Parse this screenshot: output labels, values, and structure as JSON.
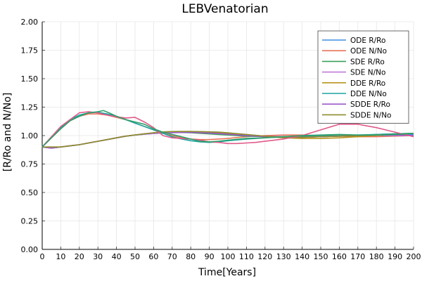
{
  "chart_data": {
    "type": "line",
    "title": "LEBVenatorian",
    "xlabel": "Time[Years]",
    "ylabel": "[R/Ro and N/No]",
    "xlim": [
      0,
      200
    ],
    "ylim": [
      0,
      2
    ],
    "xticks": [
      0,
      10,
      20,
      30,
      40,
      50,
      60,
      70,
      80,
      90,
      100,
      110,
      120,
      130,
      140,
      150,
      160,
      170,
      180,
      190,
      200
    ],
    "yticks": [
      "0.00",
      "0.25",
      "0.50",
      "0.75",
      "1.00",
      "1.25",
      "1.50",
      "1.75",
      "2.00"
    ],
    "grid": true,
    "legend_position": "top-right",
    "series": [
      {
        "name": "ODE R/Ro",
        "color": "#3b8fe0",
        "x": [
          0,
          5,
          10,
          15,
          20,
          25,
          30,
          35,
          40,
          45,
          50,
          55,
          60,
          65,
          70,
          75,
          80,
          85,
          90,
          95,
          100,
          110,
          120,
          130,
          140,
          150,
          160,
          170,
          180,
          190,
          200
        ],
        "y": [
          0.9,
          0.89,
          0.9,
          0.91,
          0.92,
          0.935,
          0.95,
          0.965,
          0.98,
          0.995,
          1.005,
          1.012,
          1.018,
          1.022,
          1.025,
          1.026,
          1.026,
          1.024,
          1.021,
          1.017,
          1.012,
          1.002,
          0.995,
          0.99,
          0.988,
          0.99,
          0.995,
          1.0,
          1.005,
          1.01,
          1.01
        ]
      },
      {
        "name": "ODE N/No",
        "color": "#e8745a",
        "x": [
          0,
          5,
          10,
          15,
          20,
          25,
          30,
          35,
          40,
          45,
          50,
          55,
          60,
          65,
          70,
          75,
          80,
          85,
          90,
          95,
          100,
          110,
          120,
          130,
          140,
          150,
          160,
          170,
          180,
          190,
          200
        ],
        "y": [
          0.9,
          0.98,
          1.06,
          1.13,
          1.17,
          1.19,
          1.19,
          1.18,
          1.16,
          1.14,
          1.11,
          1.08,
          1.05,
          1.02,
          1.0,
          0.98,
          0.97,
          0.965,
          0.965,
          0.97,
          0.975,
          0.99,
          1.0,
          1.005,
          1.005,
          1.0,
          0.995,
          0.99,
          0.99,
          0.995,
          1.0
        ]
      },
      {
        "name": "SDE R/Ro",
        "color": "#3aa05a",
        "x": [
          0,
          5,
          10,
          15,
          20,
          25,
          30,
          35,
          40,
          45,
          50,
          55,
          60,
          65,
          70,
          75,
          80,
          85,
          90,
          95,
          100,
          110,
          120,
          130,
          140,
          150,
          160,
          170,
          180,
          190,
          200
        ],
        "y": [
          0.9,
          0.89,
          0.9,
          0.91,
          0.92,
          0.935,
          0.95,
          0.965,
          0.98,
          0.995,
          1.005,
          1.015,
          1.02,
          1.025,
          1.027,
          1.028,
          1.025,
          1.02,
          1.015,
          1.01,
          1.005,
          0.995,
          0.99,
          0.985,
          0.985,
          0.99,
          0.995,
          1.0,
          1.01,
          1.015,
          1.02
        ]
      },
      {
        "name": "SDE N/No",
        "color": "#c07ad8",
        "x": [
          0,
          5,
          10,
          15,
          20,
          25,
          30,
          35,
          40,
          45,
          50,
          55,
          60,
          65,
          70,
          75,
          80,
          85,
          90,
          95,
          100,
          110,
          120,
          130,
          140,
          150,
          160,
          170,
          180,
          190,
          200
        ],
        "y": [
          0.9,
          0.89,
          0.9,
          0.91,
          0.92,
          0.935,
          0.95,
          0.965,
          0.98,
          0.995,
          1.005,
          1.012,
          1.018,
          1.022,
          1.025,
          1.027,
          1.028,
          1.026,
          1.022,
          1.018,
          1.013,
          1.003,
          0.995,
          0.99,
          0.988,
          0.99,
          0.995,
          1.0,
          1.0,
          1.0,
          1.0
        ]
      },
      {
        "name": "DDE R/Ro",
        "color": "#b8931a",
        "x": [
          0,
          5,
          10,
          15,
          20,
          25,
          30,
          35,
          40,
          45,
          50,
          55,
          60,
          65,
          70,
          75,
          80,
          85,
          90,
          95,
          100,
          110,
          120,
          130,
          140,
          150,
          160,
          170,
          180,
          190,
          200
        ],
        "y": [
          0.9,
          0.89,
          0.9,
          0.91,
          0.92,
          0.935,
          0.95,
          0.965,
          0.98,
          0.995,
          1.005,
          1.015,
          1.025,
          1.032,
          1.035,
          1.036,
          1.036,
          1.034,
          1.031,
          1.027,
          1.02,
          1.005,
          0.99,
          0.98,
          0.975,
          0.975,
          0.98,
          0.99,
          1.0,
          1.01,
          1.02
        ]
      },
      {
        "name": "DDE N/No",
        "color": "#1aa3a0",
        "x": [
          0,
          5,
          10,
          15,
          20,
          25,
          30,
          35,
          40,
          45,
          50,
          55,
          60,
          65,
          70,
          75,
          80,
          85,
          90,
          95,
          100,
          110,
          120,
          130,
          140,
          150,
          160,
          170,
          180,
          190,
          200
        ],
        "y": [
          0.9,
          0.99,
          1.07,
          1.14,
          1.18,
          1.2,
          1.205,
          1.19,
          1.17,
          1.14,
          1.11,
          1.08,
          1.05,
          1.02,
          0.99,
          0.97,
          0.955,
          0.945,
          0.94,
          0.945,
          0.955,
          0.97,
          0.98,
          0.99,
          0.995,
          1.0,
          1.0,
          1.005,
          1.01,
          1.015,
          1.02
        ]
      },
      {
        "name": "SDDE R/Ro",
        "color": "#9b59c9",
        "x": [
          0,
          5,
          10,
          15,
          20,
          25,
          30,
          35,
          40,
          45,
          50,
          55,
          60,
          65,
          70,
          75,
          80,
          85,
          90,
          95,
          100,
          110,
          120,
          130,
          140,
          150,
          160,
          170,
          180,
          190,
          200
        ],
        "y": [
          0.9,
          0.89,
          0.9,
          0.91,
          0.92,
          0.935,
          0.95,
          0.965,
          0.98,
          0.995,
          1.005,
          1.015,
          1.025,
          1.03,
          1.032,
          1.031,
          1.028,
          1.025,
          1.022,
          1.018,
          1.012,
          1.0,
          0.99,
          0.985,
          0.985,
          0.99,
          0.995,
          1.0,
          1.005,
          1.005,
          1.0
        ]
      },
      {
        "name": "SDDE N/No",
        "color": "#8d8c2e",
        "x": [
          0,
          5,
          10,
          15,
          20,
          25,
          30,
          35,
          40,
          45,
          50,
          55,
          60,
          65,
          70,
          75,
          80,
          85,
          90,
          95,
          100,
          110,
          120,
          130,
          140,
          150,
          160,
          170,
          180,
          190,
          200
        ],
        "y": [
          0.9,
          0.9,
          0.9,
          0.91,
          0.92,
          0.935,
          0.95,
          0.965,
          0.98,
          0.995,
          1.005,
          1.015,
          1.025,
          1.032,
          1.035,
          1.036,
          1.036,
          1.035,
          1.033,
          1.03,
          1.025,
          1.01,
          0.995,
          0.985,
          0.985,
          0.99,
          0.995,
          1.0,
          1.005,
          1.01,
          1.02
        ]
      },
      {
        "name": "",
        "color": "#e05a8a",
        "x": [
          0,
          5,
          10,
          15,
          20,
          25,
          30,
          35,
          40,
          45,
          50,
          55,
          60,
          65,
          70,
          75,
          80,
          85,
          90,
          95,
          100,
          105,
          110,
          115,
          120,
          130,
          140,
          150,
          160,
          170,
          180,
          190,
          200
        ],
        "y": [
          0.9,
          0.99,
          1.08,
          1.14,
          1.2,
          1.21,
          1.2,
          1.18,
          1.165,
          1.155,
          1.16,
          1.12,
          1.07,
          1.0,
          0.98,
          0.975,
          0.97,
          0.96,
          0.945,
          0.94,
          0.93,
          0.93,
          0.935,
          0.94,
          0.95,
          0.97,
          1.0,
          1.05,
          1.1,
          1.1,
          1.07,
          1.03,
          0.99
        ]
      },
      {
        "name": "",
        "color": "#2e9f6a",
        "x": [
          0,
          5,
          10,
          15,
          20,
          25,
          30,
          33,
          36,
          40,
          45,
          50,
          55,
          60,
          65,
          70,
          75,
          80,
          85,
          90,
          95,
          100,
          110,
          120,
          130,
          140,
          150,
          160,
          170,
          180,
          190,
          200
        ],
        "y": [
          0.9,
          0.98,
          1.06,
          1.13,
          1.17,
          1.2,
          1.21,
          1.22,
          1.2,
          1.17,
          1.14,
          1.12,
          1.1,
          1.06,
          1.03,
          1.01,
          0.99,
          0.97,
          0.95,
          0.945,
          0.95,
          0.96,
          0.975,
          0.98,
          0.99,
          1.0,
          1.005,
          1.01,
          1.005,
          1.005,
          1.01,
          1.02
        ]
      }
    ]
  }
}
